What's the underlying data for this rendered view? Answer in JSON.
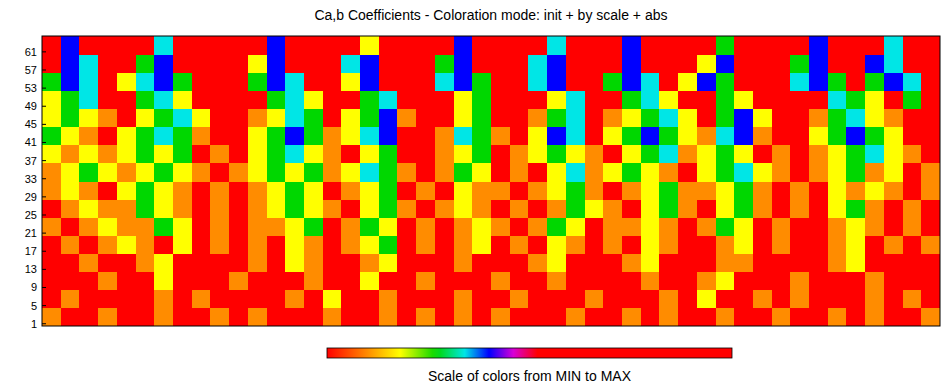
{
  "chart_data": {
    "type": "heatmap",
    "title": "Ca,b Coefficients - Coloration mode: init + by scale + abs",
    "xlim": [
      0,
      48
    ],
    "ylim": [
      0.5,
      64.5
    ],
    "yticks": [
      1,
      5,
      9,
      13,
      17,
      21,
      25,
      29,
      33,
      37,
      41,
      45,
      49,
      53,
      57,
      61
    ],
    "y_edges": [
      0.5,
      4.5,
      8.5,
      12.5,
      16.5,
      20.5,
      24.5,
      28.5,
      32.5,
      36.5,
      40.5,
      44.5,
      48.5,
      52.5,
      56.5,
      60.5,
      64.5
    ],
    "tick_labels": "y",
    "colorbar": {
      "label": "Scale of colors from MIN to MAX",
      "range": [
        0,
        100
      ]
    },
    "cells": [
      [
        10,
        0,
        0,
        10,
        0,
        0,
        10,
        0,
        0,
        10,
        0,
        10,
        0,
        0,
        0,
        10,
        0,
        0,
        10,
        0,
        10,
        0,
        10,
        0,
        10,
        0,
        0,
        0,
        10,
        0,
        0,
        10,
        0,
        10,
        0,
        0,
        10,
        0,
        0,
        10,
        0,
        0,
        10,
        0,
        10,
        0,
        0,
        10
      ],
      [
        0,
        10,
        0,
        0,
        0,
        0,
        10,
        0,
        10,
        0,
        0,
        0,
        0,
        10,
        0,
        18,
        0,
        0,
        10,
        0,
        0,
        0,
        10,
        0,
        0,
        10,
        0,
        0,
        0,
        10,
        0,
        0,
        0,
        10,
        0,
        18,
        0,
        0,
        10,
        0,
        10,
        0,
        0,
        0,
        10,
        0,
        10,
        0
      ],
      [
        0,
        0,
        0,
        10,
        0,
        0,
        18,
        0,
        0,
        0,
        10,
        0,
        0,
        0,
        10,
        0,
        0,
        18,
        0,
        0,
        10,
        0,
        0,
        0,
        10,
        0,
        0,
        10,
        0,
        0,
        0,
        0,
        10,
        0,
        0,
        10,
        18,
        0,
        0,
        0,
        10,
        0,
        0,
        0,
        10,
        0,
        0,
        0
      ],
      [
        0,
        0,
        10,
        0,
        0,
        10,
        18,
        0,
        0,
        0,
        0,
        10,
        0,
        18,
        10,
        0,
        0,
        10,
        18,
        0,
        0,
        0,
        10,
        0,
        0,
        0,
        10,
        18,
        0,
        0,
        0,
        10,
        18,
        0,
        0,
        0,
        10,
        10,
        0,
        0,
        0,
        0,
        10,
        18,
        0,
        0,
        0,
        0
      ],
      [
        0,
        10,
        0,
        10,
        18,
        10,
        0,
        18,
        0,
        10,
        0,
        10,
        0,
        18,
        10,
        0,
        10,
        18,
        27,
        0,
        10,
        0,
        10,
        18,
        0,
        10,
        0,
        18,
        10,
        0,
        10,
        0,
        18,
        10,
        0,
        0,
        10,
        18,
        0,
        10,
        0,
        0,
        10,
        18,
        0,
        10,
        0,
        10
      ],
      [
        10,
        0,
        10,
        18,
        10,
        10,
        27,
        18,
        0,
        10,
        0,
        10,
        10,
        18,
        27,
        0,
        10,
        27,
        18,
        0,
        10,
        0,
        10,
        18,
        10,
        0,
        10,
        27,
        18,
        0,
        10,
        10,
        18,
        10,
        0,
        10,
        27,
        18,
        0,
        10,
        0,
        0,
        10,
        18,
        10,
        0,
        10,
        0
      ],
      [
        0,
        10,
        18,
        10,
        10,
        27,
        18,
        10,
        0,
        10,
        0,
        10,
        18,
        27,
        18,
        10,
        0,
        18,
        27,
        10,
        0,
        10,
        18,
        10,
        0,
        10,
        0,
        10,
        27,
        18,
        10,
        0,
        18,
        27,
        10,
        0,
        18,
        27,
        10,
        0,
        10,
        0,
        18,
        27,
        10,
        0,
        10,
        0
      ],
      [
        10,
        18,
        10,
        75,
        18,
        27,
        18,
        10,
        75,
        10,
        75,
        10,
        18,
        27,
        18,
        75,
        10,
        18,
        27,
        75,
        10,
        75,
        18,
        10,
        10,
        75,
        10,
        18,
        27,
        10,
        75,
        10,
        18,
        27,
        10,
        10,
        18,
        27,
        10,
        75,
        10,
        75,
        18,
        10,
        18,
        10,
        75,
        10
      ],
      [
        10,
        18,
        27,
        18,
        10,
        18,
        27,
        18,
        10,
        75,
        10,
        18,
        27,
        18,
        27,
        10,
        18,
        34,
        27,
        10,
        75,
        10,
        27,
        18,
        75,
        10,
        75,
        18,
        34,
        10,
        18,
        27,
        18,
        10,
        75,
        18,
        27,
        34,
        18,
        10,
        75,
        10,
        18,
        27,
        10,
        18,
        75,
        10
      ],
      [
        18,
        10,
        18,
        10,
        18,
        27,
        18,
        27,
        75,
        10,
        75,
        18,
        27,
        34,
        18,
        10,
        75,
        18,
        27,
        75,
        75,
        10,
        18,
        27,
        75,
        10,
        18,
        27,
        18,
        10,
        75,
        18,
        27,
        34,
        10,
        18,
        27,
        18,
        75,
        10,
        75,
        10,
        18,
        27,
        34,
        18,
        10,
        75
      ],
      [
        27,
        18,
        10,
        75,
        18,
        27,
        34,
        27,
        10,
        75,
        75,
        18,
        27,
        40,
        27,
        10,
        18,
        34,
        40,
        75,
        75,
        10,
        34,
        27,
        10,
        75,
        18,
        40,
        34,
        75,
        18,
        27,
        40,
        27,
        18,
        10,
        34,
        40,
        10,
        75,
        75,
        18,
        27,
        40,
        27,
        18,
        75,
        75
      ],
      [
        18,
        27,
        18,
        10,
        75,
        18,
        27,
        34,
        18,
        75,
        75,
        10,
        18,
        34,
        27,
        75,
        18,
        27,
        40,
        10,
        75,
        75,
        18,
        27,
        75,
        75,
        10,
        27,
        34,
        75,
        10,
        18,
        27,
        34,
        18,
        75,
        27,
        40,
        18,
        75,
        75,
        10,
        27,
        34,
        18,
        10,
        75,
        75
      ],
      [
        18,
        27,
        34,
        75,
        75,
        27,
        34,
        18,
        75,
        75,
        75,
        75,
        27,
        34,
        18,
        75,
        75,
        27,
        34,
        75,
        75,
        75,
        18,
        27,
        75,
        75,
        75,
        18,
        34,
        75,
        75,
        27,
        34,
        18,
        75,
        75,
        27,
        18,
        75,
        75,
        75,
        75,
        34,
        27,
        18,
        75,
        27,
        75
      ],
      [
        27,
        40,
        34,
        75,
        18,
        34,
        40,
        27,
        75,
        75,
        75,
        27,
        40,
        34,
        75,
        75,
        18,
        40,
        75,
        75,
        75,
        34,
        40,
        27,
        75,
        75,
        34,
        40,
        75,
        75,
        27,
        40,
        34,
        75,
        18,
        40,
        27,
        75,
        75,
        75,
        34,
        40,
        27,
        75,
        27,
        40,
        34,
        75
      ],
      [
        75,
        40,
        34,
        75,
        75,
        27,
        40,
        75,
        75,
        75,
        75,
        18,
        40,
        75,
        75,
        75,
        34,
        40,
        75,
        75,
        75,
        27,
        40,
        75,
        75,
        75,
        34,
        40,
        75,
        75,
        75,
        40,
        75,
        75,
        75,
        18,
        40,
        75,
        75,
        75,
        27,
        40,
        75,
        75,
        40,
        34,
        75,
        75
      ],
      [
        75,
        40,
        75,
        75,
        75,
        75,
        34,
        75,
        75,
        75,
        75,
        75,
        40,
        75,
        75,
        75,
        75,
        18,
        75,
        75,
        75,
        75,
        40,
        75,
        75,
        75,
        75,
        34,
        75,
        75,
        75,
        40,
        75,
        75,
        75,
        75,
        27,
        75,
        75,
        75,
        75,
        40,
        75,
        75,
        75,
        34,
        75,
        75
      ]
    ]
  }
}
